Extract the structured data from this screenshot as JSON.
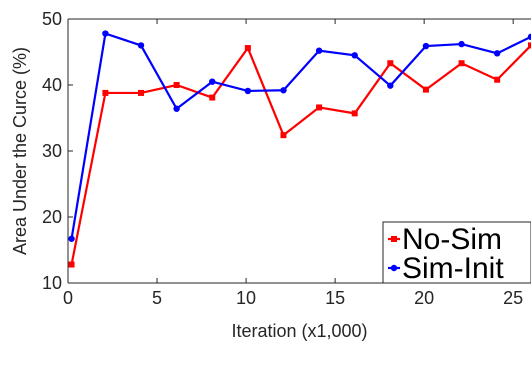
{
  "chart_data": {
    "type": "line",
    "title": "",
    "xlabel": "Iteration (x1,000)",
    "ylabel": "Area Under the Curce (%)",
    "xlim": [
      0,
      26
    ],
    "ylim": [
      10,
      50
    ],
    "xticks": [
      0,
      5,
      10,
      15,
      20,
      25
    ],
    "yticks": [
      10,
      20,
      30,
      40,
      50
    ],
    "x_tick_labels": [
      "0",
      "5",
      "10",
      "15",
      "20",
      "25"
    ],
    "y_tick_labels": [
      "10",
      "20",
      "30",
      "40",
      "50"
    ],
    "grid": false,
    "legend_position": "bottom-right",
    "series": [
      {
        "name": "No-Sim",
        "color": "#ff0000",
        "marker": "square",
        "x": [
          0.2,
          2.1,
          4.1,
          6.1,
          8.1,
          10.1,
          12.1,
          14.1,
          16.1,
          18.1,
          20.1,
          22.1,
          24.1,
          26.0
        ],
        "y": [
          12.8,
          38.8,
          38.8,
          40.0,
          38.1,
          45.6,
          32.4,
          36.6,
          35.7,
          43.3,
          39.3,
          43.3,
          40.8,
          46.0
        ]
      },
      {
        "name": "Sim-Init",
        "color": "#0000ff",
        "marker": "circle",
        "x": [
          0.2,
          2.1,
          4.1,
          6.1,
          8.1,
          10.1,
          12.1,
          14.1,
          16.1,
          18.1,
          20.1,
          22.1,
          24.1,
          26.0
        ],
        "y": [
          16.7,
          47.8,
          46.0,
          36.4,
          40.5,
          39.1,
          39.2,
          45.2,
          44.5,
          39.9,
          45.9,
          46.2,
          44.8,
          47.3
        ]
      }
    ]
  }
}
